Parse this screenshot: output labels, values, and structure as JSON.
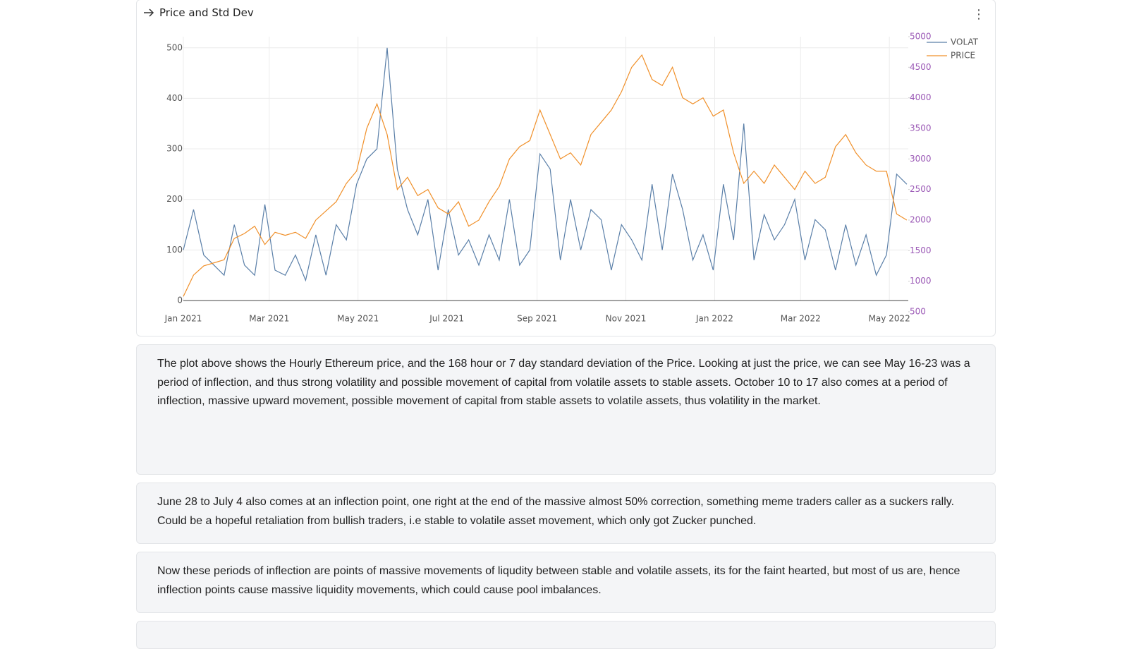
{
  "panel": {
    "title": "Price and Std Dev"
  },
  "chart_data": {
    "type": "line",
    "xlim": [
      0,
      498
    ],
    "xticks": [
      {
        "value": 0,
        "label": "Jan 2021"
      },
      {
        "value": 59,
        "label": "Mar 2021"
      },
      {
        "value": 120,
        "label": "May 2021"
      },
      {
        "value": 181,
        "label": "Jul 2021"
      },
      {
        "value": 243,
        "label": "Sep 2021"
      },
      {
        "value": 304,
        "label": "Nov 2021"
      },
      {
        "value": 365,
        "label": "Jan 2022"
      },
      {
        "value": 424,
        "label": "Mar 2022"
      },
      {
        "value": 485,
        "label": "May 2022"
      }
    ],
    "ylim": [
      0,
      522
    ],
    "yticks": [
      0,
      100,
      200,
      300,
      400,
      500
    ],
    "y2lim": [
      684,
      5000
    ],
    "y2ticks": [
      500,
      1000,
      1500,
      2000,
      2500,
      3000,
      3500,
      4000,
      4500,
      5000
    ],
    "grid": true,
    "legend": "top-right",
    "x": [
      0,
      7,
      14,
      21,
      28,
      35,
      42,
      49,
      56,
      63,
      70,
      77,
      84,
      91,
      98,
      105,
      112,
      119,
      126,
      133,
      140,
      147,
      154,
      161,
      168,
      175,
      182,
      189,
      196,
      203,
      210,
      217,
      224,
      231,
      238,
      245,
      252,
      259,
      266,
      273,
      280,
      287,
      294,
      301,
      308,
      315,
      322,
      329,
      336,
      343,
      350,
      357,
      364,
      371,
      378,
      385,
      392,
      399,
      406,
      413,
      420,
      427,
      434,
      441,
      448,
      455,
      462,
      469,
      476,
      483,
      490,
      497
    ],
    "series": [
      {
        "name": "VOLAT",
        "color": "#5a7fa8",
        "values": [
          100,
          180,
          90,
          70,
          50,
          150,
          70,
          50,
          190,
          60,
          50,
          90,
          40,
          130,
          50,
          150,
          120,
          230,
          280,
          300,
          500,
          260,
          180,
          130,
          200,
          60,
          180,
          90,
          120,
          70,
          130,
          80,
          200,
          70,
          100,
          290,
          260,
          80,
          200,
          100,
          180,
          160,
          60,
          150,
          120,
          80,
          230,
          100,
          250,
          180,
          80,
          130,
          60,
          230,
          120,
          350,
          80,
          170,
          120,
          150,
          200,
          80,
          160,
          140,
          60,
          150,
          70,
          130,
          50,
          90,
          250,
          230
        ]
      },
      {
        "name": "PRICE",
        "color": "#f0902a",
        "axis": "y2",
        "values": [
          750,
          1100,
          1250,
          1300,
          1350,
          1700,
          1780,
          1900,
          1600,
          1800,
          1750,
          1800,
          1700,
          2000,
          2150,
          2300,
          2600,
          2800,
          3500,
          3900,
          3400,
          2500,
          2700,
          2400,
          2500,
          2200,
          2100,
          2300,
          1900,
          2000,
          2300,
          2550,
          3000,
          3200,
          3300,
          3800,
          3400,
          3000,
          3100,
          2900,
          3400,
          3600,
          3800,
          4100,
          4500,
          4700,
          4300,
          4200,
          4500,
          4000,
          3900,
          4000,
          3700,
          3800,
          3100,
          2600,
          2800,
          2600,
          2900,
          2700,
          2500,
          2800,
          2600,
          2700,
          3200,
          3400,
          3100,
          2900,
          2800,
          2800,
          2100,
          2000
        ]
      }
    ]
  },
  "notes": [
    "The plot above shows the Hourly Ethereum price, and the 168 hour or 7 day standard deviation of the Price. Looking at just the price, we can see May 16-23 was a period of inflection, and thus strong volatility and possible movement of capital from volatile assets to stable assets. October 10 to 17 also comes at a period of inflection, massive upward movement, possible movement of capital from stable assets to volatile assets, thus volatility in the market.",
    "June 28 to July 4 also comes at an inflection point, one right at the end of the massive almost 50% correction, something meme traders caller as a suckers rally. Could be a hopeful retaliation from bullish traders, i.e stable to volatile asset movement, which only got Zucker punched.",
    "Now these periods of inflection are points of massive movements of liqudity between stable and volatile assets, its for the faint hearted, but most of us are, hence inflection points cause massive liquidity movements, which could cause pool imbalances."
  ]
}
